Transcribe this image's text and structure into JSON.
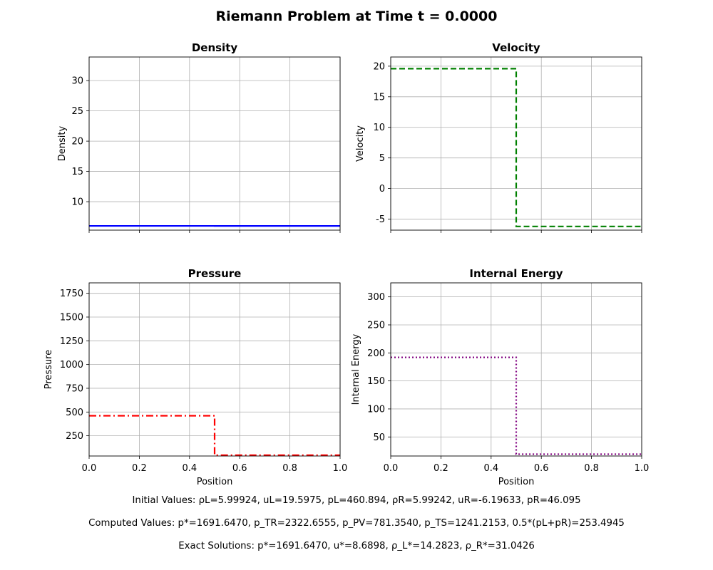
{
  "figure": {
    "title": "Riemann Problem at Time t = 0.0000"
  },
  "chart_data": [
    {
      "type": "line",
      "title": "Density",
      "xlabel": "",
      "ylabel": "Density",
      "xlim": [
        0.0,
        1.0
      ],
      "ylim": [
        5.3,
        33.9
      ],
      "xticks": [
        0.0,
        0.2,
        0.4,
        0.6,
        0.8,
        1.0
      ],
      "xtick_labels_visible": false,
      "yticks": [
        10,
        15,
        20,
        25,
        30
      ],
      "grid": true,
      "series": [
        {
          "x": [
            0.0,
            0.5,
            0.5,
            1.0
          ],
          "y": [
            5.99924,
            5.99924,
            5.99242,
            5.99242
          ],
          "color": "#0000ff",
          "linestyle": "solid"
        }
      ]
    },
    {
      "type": "line",
      "title": "Velocity",
      "xlabel": "",
      "ylabel": "Velocity",
      "xlim": [
        0.0,
        1.0
      ],
      "ylim": [
        -6.8,
        21.5
      ],
      "xticks": [
        0.0,
        0.2,
        0.4,
        0.6,
        0.8,
        1.0
      ],
      "xtick_labels_visible": false,
      "yticks": [
        -5,
        0,
        5,
        10,
        15,
        20
      ],
      "grid": true,
      "series": [
        {
          "x": [
            0.0,
            0.5,
            0.5,
            1.0
          ],
          "y": [
            19.5975,
            19.5975,
            -6.19633,
            -6.19633
          ],
          "color": "#008000",
          "linestyle": "dashed"
        }
      ]
    },
    {
      "type": "line",
      "title": "Pressure",
      "xlabel": "Position",
      "ylabel": "Pressure",
      "xlim": [
        0.0,
        1.0
      ],
      "ylim": [
        37,
        1860
      ],
      "xticks": [
        0.0,
        0.2,
        0.4,
        0.6,
        0.8,
        1.0
      ],
      "xtick_labels_visible": true,
      "yticks": [
        250,
        500,
        750,
        1000,
        1250,
        1500,
        1750
      ],
      "grid": true,
      "series": [
        {
          "x": [
            0.0,
            0.5,
            0.5,
            1.0
          ],
          "y": [
            460.894,
            460.894,
            46.095,
            46.095
          ],
          "color": "#ff0000",
          "linestyle": "dashdot"
        }
      ]
    },
    {
      "type": "line",
      "title": "Internal Energy",
      "xlabel": "Position",
      "ylabel": "Internal Energy",
      "xlim": [
        0.0,
        1.0
      ],
      "ylim": [
        16,
        325
      ],
      "xticks": [
        0.0,
        0.2,
        0.4,
        0.6,
        0.8,
        1.0
      ],
      "xtick_labels_visible": true,
      "yticks": [
        50,
        100,
        150,
        200,
        250,
        300
      ],
      "grid": true,
      "series": [
        {
          "x": [
            0.0,
            0.5,
            0.5,
            1.0
          ],
          "y": [
            192.06,
            192.06,
            19.23,
            19.23
          ],
          "color": "#800080",
          "linestyle": "dotted"
        }
      ]
    }
  ],
  "info": {
    "initial": "Initial Values:  ρL=5.99924, uL=19.5975, pL=460.894,  ρR=5.99242, uR=-6.19633, pR=46.095",
    "computed": "Computed Values:  p*=1691.6470, p_TR=2322.6555, p_PV=781.3540, p_TS=1241.2153, 0.5*(pL+pR)=253.4945",
    "exact": "Exact Solutions:  p*=1691.6470, u*=8.6898, ρ_L*=14.2823, ρ_R*=31.0426"
  }
}
